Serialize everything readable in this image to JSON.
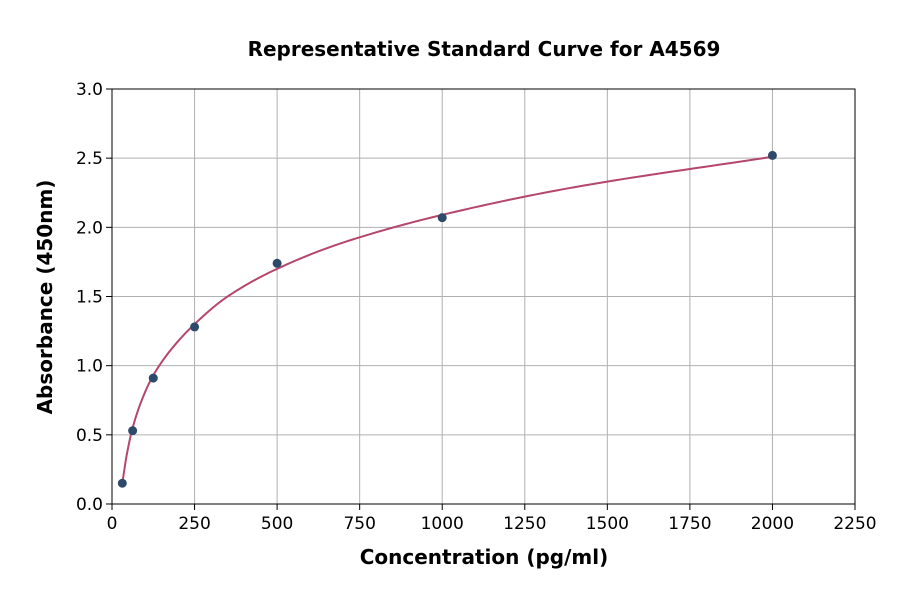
{
  "chart_data": {
    "type": "scatter",
    "title": "Representative Standard Curve for A4569",
    "xlabel": "Concentration (pg/ml)",
    "ylabel": "Absorbance (450nm)",
    "xlim": [
      0,
      2250
    ],
    "ylim": [
      0,
      3.0
    ],
    "grid": true,
    "x_ticks": [
      "0",
      "250",
      "500",
      "750",
      "1000",
      "1250",
      "1500",
      "1750",
      "2000",
      "2250"
    ],
    "y_ticks": [
      "0.0",
      "0.5",
      "1.0",
      "1.5",
      "2.0",
      "2.5",
      "3.0"
    ],
    "series": [
      {
        "x": [
          31.25,
          62.5,
          125,
          250,
          500,
          1000,
          2000
        ],
        "y": [
          0.15,
          0.53,
          0.91,
          1.28,
          1.74,
          2.07,
          2.52
        ],
        "color": "#2e4a6b"
      }
    ],
    "fit_curve": {
      "x": [
        31.25,
        45,
        62.5,
        90,
        125,
        180,
        250,
        350,
        500,
        700,
        1000,
        1400,
        2000
      ],
      "y": [
        0.15,
        0.36,
        0.55,
        0.75,
        0.93,
        1.12,
        1.3,
        1.5,
        1.7,
        1.89,
        2.09,
        2.29,
        2.51
      ],
      "color": "#b5476b"
    }
  }
}
